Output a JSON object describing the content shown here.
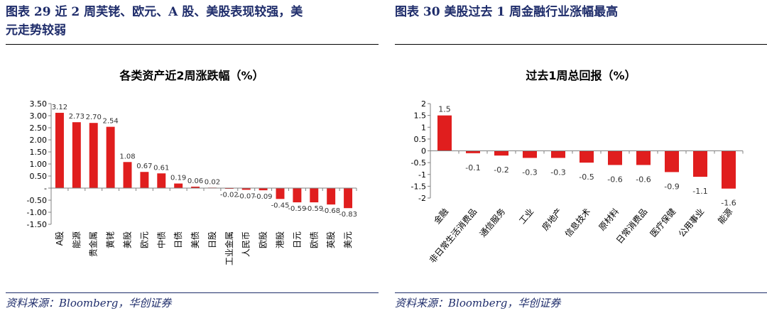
{
  "left_panel": {
    "title": "图表 29   近 2 周芙铑、欧元、A 股、美股表现较强，美元走势较弱",
    "title_line1": "图表 29   近 2 周芙铑、欧元、A 股、美股表现较强，美",
    "title_line2": "元走势较弱",
    "source": "资料来源：Bloomberg，华创证券"
  },
  "right_panel": {
    "title": "图表 30   美股过去 1 周金融行业涨幅最高",
    "source": "资料来源：Bloomberg，华创证券"
  },
  "colors": {
    "bar": "#e01e1e",
    "axis": "#808080",
    "title_blue": "#1f2d6b"
  },
  "chart_data": [
    {
      "type": "bar",
      "title": "各类资产近2周涨跌幅（%）",
      "categories": [
        "A股",
        "能源",
        "贵金属",
        "黄铑",
        "美股",
        "欧元",
        "中债",
        "日债",
        "美债",
        "日股",
        "工业金属",
        "人民币",
        "欧股",
        "港股",
        "日元",
        "欧债",
        "英股",
        "美元"
      ],
      "values": [
        3.12,
        2.73,
        2.7,
        2.54,
        1.08,
        0.67,
        0.61,
        0.19,
        0.06,
        0.02,
        -0.02,
        -0.07,
        -0.09,
        -0.45,
        -0.59,
        -0.59,
        -0.68,
        -0.83
      ],
      "value_labels": [
        "3.12",
        "2.73",
        "2.70",
        "2.54",
        "1.08",
        "0.67",
        "0.61",
        "0.19",
        "0.06",
        "0.02",
        "-0.02",
        "-0.07",
        "-0.09",
        "-0.45",
        "-0.59",
        "-0.59",
        "-0.68",
        "-0.83"
      ],
      "yticks": [
        "3.50",
        "3.00",
        "2.50",
        "2.00",
        "1.50",
        "1.00",
        "0.50",
        "-",
        "-0.50",
        "-1.00",
        "-1.50"
      ],
      "ylim": [
        -1.5,
        3.5
      ],
      "xlabel": "",
      "ylabel": ""
    },
    {
      "type": "bar",
      "title": "过去1周总回报（%）",
      "categories": [
        "金融",
        "非日常生活消费品",
        "通信服务",
        "工业",
        "房地产",
        "信息技术",
        "原材料",
        "日常消费品",
        "医疗保健",
        "公用事业",
        "能源"
      ],
      "values": [
        1.5,
        -0.1,
        -0.2,
        -0.3,
        -0.3,
        -0.5,
        -0.6,
        -0.6,
        -0.9,
        -1.1,
        -1.6
      ],
      "value_labels": [
        "1.5",
        "-0.1",
        "-0.2",
        "-0.3",
        "-0.3",
        "-0.5",
        "-0.6",
        "-0.6",
        "-0.9",
        "-1.1",
        "-1.6"
      ],
      "yticks": [
        "2",
        "1.5",
        "1",
        "0.5",
        "0",
        "-0.5",
        "-1",
        "-1.5",
        "-2"
      ],
      "ylim": [
        -2,
        2
      ],
      "xlabel": "",
      "ylabel": ""
    }
  ]
}
